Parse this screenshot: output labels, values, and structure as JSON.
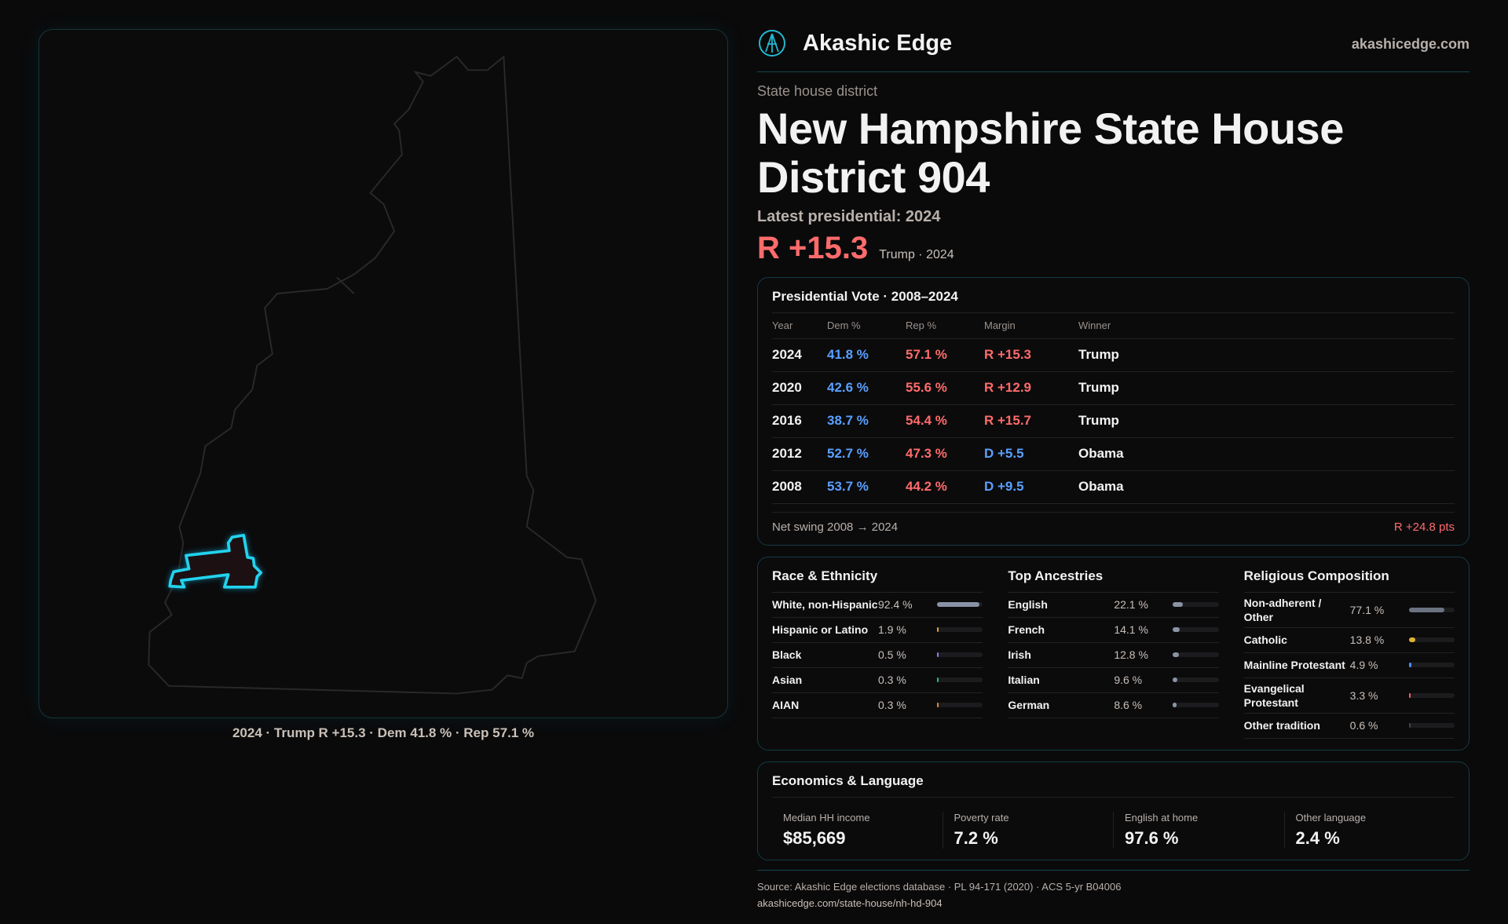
{
  "map": {
    "caption": "2024 · Trump R +15.3 · Dem 41.8 % · Rep 57.1 %",
    "highlight_color": "#22d3ee"
  },
  "header": {
    "brand": "Akashic Edge",
    "site": "akashicedge.com"
  },
  "hero": {
    "kicker": "State house district",
    "title": "New Hampshire State House District 904",
    "latest": "Latest presidential: 2024",
    "margin": "R +15.3",
    "sub": "Trump · 2024"
  },
  "vote": {
    "title": "Presidential Vote · 2008–2024",
    "headers": [
      "Year",
      "Dem %",
      "Rep %",
      "Margin",
      "Winner"
    ],
    "rows": [
      {
        "year": "2024",
        "dem": "41.8 %",
        "rep": "57.1 %",
        "margin": "R +15.3",
        "party": "R",
        "winner": "Trump"
      },
      {
        "year": "2020",
        "dem": "42.6 %",
        "rep": "55.6 %",
        "margin": "R +12.9",
        "party": "R",
        "winner": "Trump"
      },
      {
        "year": "2016",
        "dem": "38.7 %",
        "rep": "54.4 %",
        "margin": "R +15.7",
        "party": "R",
        "winner": "Trump"
      },
      {
        "year": "2012",
        "dem": "52.7 %",
        "rep": "47.3 %",
        "margin": "D +5.5",
        "party": "D",
        "winner": "Obama"
      },
      {
        "year": "2008",
        "dem": "53.7 %",
        "rep": "44.2 %",
        "margin": "D +9.5",
        "party": "D",
        "winner": "Obama"
      }
    ],
    "swing_label": "Net swing 2008 → 2024",
    "swing_value": "R +24.8 pts"
  },
  "demographics": [
    {
      "title": "Race & Ethnicity",
      "items": [
        {
          "name": "White, non-Hispanic",
          "value": "92.4 %",
          "pct": 92.4,
          "color": "#8a93a6"
        },
        {
          "name": "Hispanic or Latino",
          "value": "1.9 %",
          "pct": 1.9,
          "color": "#e0a030"
        },
        {
          "name": "Black",
          "value": "0.5 %",
          "pct": 0.5,
          "color": "#8b7cf6"
        },
        {
          "name": "Asian",
          "value": "0.3 %",
          "pct": 0.3,
          "color": "#2fb57a"
        },
        {
          "name": "AIAN",
          "value": "0.3 %",
          "pct": 0.3,
          "color": "#d98a3a"
        }
      ]
    },
    {
      "title": "Top Ancestries",
      "items": [
        {
          "name": "English",
          "value": "22.1 %",
          "pct": 22.1,
          "color": "#8a93a6"
        },
        {
          "name": "French",
          "value": "14.1 %",
          "pct": 14.1,
          "color": "#8a93a6"
        },
        {
          "name": "Irish",
          "value": "12.8 %",
          "pct": 12.8,
          "color": "#8a93a6"
        },
        {
          "name": "Italian",
          "value": "9.6 %",
          "pct": 9.6,
          "color": "#8a93a6"
        },
        {
          "name": "German",
          "value": "8.6 %",
          "pct": 8.6,
          "color": "#8a93a6"
        }
      ]
    },
    {
      "title": "Religious Composition",
      "items": [
        {
          "name": "Non-adherent / Other",
          "value": "77.1 %",
          "pct": 77.1,
          "color": "#6b7280"
        },
        {
          "name": "Catholic",
          "value": "13.8 %",
          "pct": 13.8,
          "color": "#e0b030"
        },
        {
          "name": "Mainline Protestant",
          "value": "4.9 %",
          "pct": 4.9,
          "color": "#4c8dff"
        },
        {
          "name": "Evangelical Protestant",
          "value": "3.3 %",
          "pct": 3.3,
          "color": "#f06060"
        },
        {
          "name": "Other tradition",
          "value": "0.6 %",
          "pct": 0.6,
          "color": "#444"
        }
      ]
    }
  ],
  "econ": {
    "title": "Economics & Language",
    "stats": [
      {
        "label": "Median HH income",
        "value": "$85,669"
      },
      {
        "label": "Poverty rate",
        "value": "7.2 %"
      },
      {
        "label": "English at home",
        "value": "97.6 %"
      },
      {
        "label": "Other language",
        "value": "2.4 %"
      }
    ]
  },
  "footer": {
    "source": "Source: Akashic Edge elections database · PL 94-171 (2020) · ACS 5-yr B04006",
    "url": "akashicedge.com/state-house/nh-hd-904"
  }
}
